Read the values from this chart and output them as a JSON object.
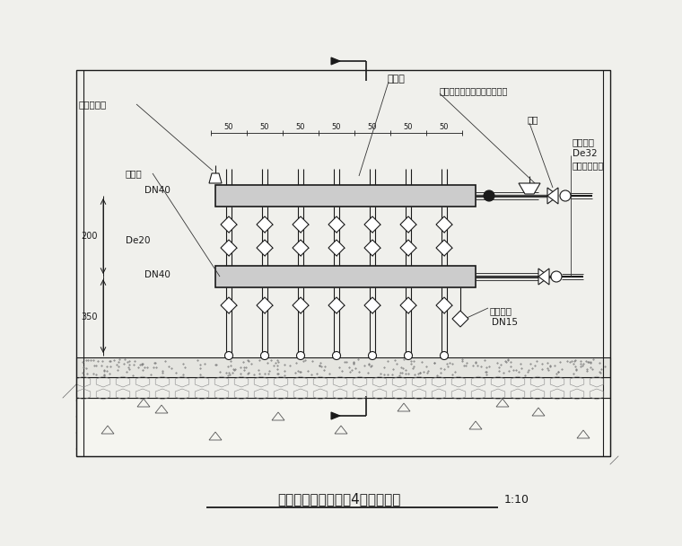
{
  "bg_color": "#f0f0ec",
  "line_color": "#1a1a1a",
  "title": "分、集水器正视图（4分支环路）",
  "scale_text": "1:10",
  "fig_width": 7.6,
  "fig_height": 6.08,
  "dpi": 100,
  "label_auto_air": "自动放气阀",
  "label_distributor": "分水器",
  "label_auto_temp": "自动温控阀（接室温遥控器）",
  "label_ball_valve": "球阀",
  "label_collector": "集水器",
  "label_weld_pipe": "焺接锂管",
  "label_De32": "De32",
  "label_supply": "接供回水立管",
  "label_DN40t": "DN40",
  "label_DN40b": "DN40",
  "label_De20": "De20",
  "label_drain": "泄水球阀",
  "label_DN15": "DN15",
  "dim_200": "200",
  "dim_350": "350"
}
